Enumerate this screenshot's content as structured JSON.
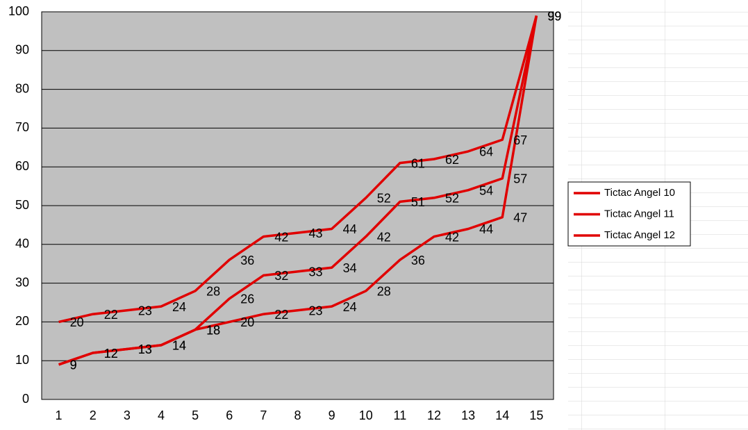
{
  "chart_data": {
    "type": "line",
    "categories": [
      1,
      2,
      3,
      4,
      5,
      6,
      7,
      8,
      9,
      10,
      11,
      12,
      13,
      14,
      15
    ],
    "series": [
      {
        "name": "Tictac Angel 10",
        "color": "#e00000",
        "values": [
          20,
          22,
          23,
          24,
          28,
          36,
          42,
          43,
          44,
          52,
          61,
          62,
          64,
          67,
          99
        ]
      },
      {
        "name": "Tictac Angel 11",
        "color": "#e00000",
        "values": [
          9,
          12,
          13,
          14,
          18,
          26,
          32,
          33,
          34,
          42,
          51,
          52,
          54,
          57,
          99
        ]
      },
      {
        "name": "Tictac Angel 12",
        "color": "#e00000",
        "values": [
          9,
          12,
          13,
          14,
          18,
          20,
          22,
          23,
          24,
          28,
          36,
          42,
          44,
          47,
          99
        ]
      }
    ],
    "ylim": [
      0,
      100
    ],
    "yticks": [
      0,
      10,
      20,
      30,
      40,
      50,
      60,
      70,
      80,
      90,
      100
    ],
    "grid": true,
    "legend": "right",
    "data_labels": true
  }
}
